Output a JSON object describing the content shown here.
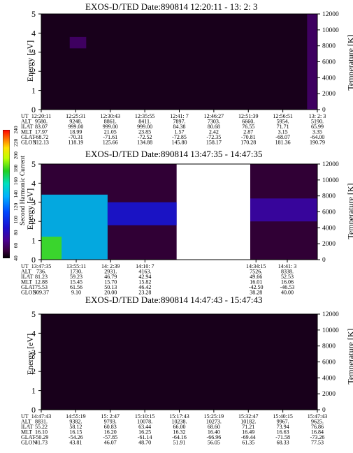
{
  "panels": [
    {
      "title": "EXOS-D/TED   Date:890814  12:20:11 - 13: 2: 3",
      "ylabel_left": "Energy [eV]",
      "ylabel_right": "Temperature [K]",
      "y_ticks": [
        "0",
        "1",
        "2",
        "3",
        "4",
        "5"
      ],
      "t_ticks": [
        "0",
        "2000",
        "4000",
        "6000",
        "8000",
        "10000",
        "12000"
      ],
      "row_labels": [
        "UT",
        "ALT",
        "ILAT",
        "MLT",
        "GLAT",
        "GLON"
      ],
      "columns": [
        [
          "12:20:11",
          "9580.",
          "83.07",
          "17.97",
          "-68.72",
          "112.13"
        ],
        [
          "12:25:31",
          "9248.",
          "999.00",
          "18.99",
          "-70.31",
          "118.19"
        ],
        [
          "12:30:43",
          "8861.",
          "999.00",
          "21.05",
          "-71.61",
          "125.66"
        ],
        [
          "12:35:55",
          "8411.",
          "999.00",
          "23.85",
          "-72.52",
          "134.88"
        ],
        [
          "12:41: 7",
          "7897.",
          "84.38",
          "1.57",
          "-72.85",
          "145.80"
        ],
        [
          "12:46:27",
          "7303.",
          "80.68",
          "2.42",
          "-72.35",
          "158.17"
        ],
        [
          "12:51:39",
          "6660.",
          "76.55",
          "2.87",
          "-70.81",
          "170.28"
        ],
        [
          "12:56:51",
          "5954.",
          "71.71",
          "3.15",
          "-68.07",
          "181.36"
        ],
        [
          "13: 2: 3",
          "5190.",
          "65.99",
          "3.35",
          "-64.00",
          "190.79"
        ]
      ]
    },
    {
      "title": "EXOS-D/TED   Date:890814  13:47:35 - 14:47:35",
      "ylabel_left": "Energy [eV]",
      "ylabel_right": "Temperature [K]",
      "y_ticks": [
        "0",
        "1",
        "2",
        "3",
        "4",
        "5"
      ],
      "t_ticks": [
        "0",
        "2000",
        "4000",
        "6000",
        "8000",
        "10000",
        "12000"
      ],
      "row_labels": [
        "UT",
        "ALT",
        "ILAT",
        "MLT",
        "GLAT",
        "GLON"
      ],
      "columns_left": [
        [
          "13:47:35",
          "736.",
          "81.23",
          "12.88",
          "75.53",
          "309.37"
        ],
        [
          "13:55:11",
          "1730.",
          "59.23",
          "15.45",
          "61.56",
          "9.10"
        ],
        [
          "14: 2:39",
          "2931.",
          "46.79",
          "15.70",
          "50.13",
          "20.00"
        ],
        [
          "14:10: 7",
          "4163.",
          "42.94",
          "15.82",
          "46.42",
          "23.28"
        ]
      ],
      "columns_right": [
        [
          "14:34:15",
          "7526.",
          "49.66",
          "16.01",
          "-42.50",
          "38.28"
        ],
        [
          "14:41: 3",
          "8338.",
          "52.53",
          "16.06",
          "-46.53",
          "40.00"
        ]
      ],
      "colorbar": {
        "label": "Second Harmonic Current",
        "ticks": [
          "40",
          "60",
          "80",
          "100",
          "120",
          "140",
          "160",
          "180",
          "200",
          "220",
          "240"
        ]
      }
    },
    {
      "title": "EXOS-D/TED   Date:890814  14:47:43 - 15:47:43",
      "ylabel_left": "Energy [eV]",
      "ylabel_right": "Temperature [K]",
      "y_ticks": [
        "0",
        "1",
        "2",
        "3",
        "4",
        "5"
      ],
      "t_ticks": [
        "0",
        "2000",
        "4000",
        "6000",
        "8000",
        "10000",
        "12000"
      ],
      "row_labels": [
        "UT",
        "ALT",
        "ILAT",
        "MLT",
        "GLAT",
        "GLON"
      ],
      "columns": [
        [
          "14:47:43",
          "8831.",
          "55.22",
          "16.10",
          "-50.29",
          "41.73"
        ],
        [
          "14:55:19",
          "9382.",
          "58.12",
          "16.15",
          "-54.26",
          "43.81"
        ],
        [
          "15: 2:47",
          "9793.",
          "60.83",
          "16.20",
          "-57.85",
          "46.07"
        ],
        [
          "15:10:15",
          "10078.",
          "63.44",
          "16.25",
          "-61.14",
          "48.70"
        ],
        [
          "15:17:43",
          "10238.",
          "66.00",
          "16.32",
          "-64.16",
          "51.91"
        ],
        [
          "15:25:19",
          "10273.",
          "68.60",
          "16.40",
          "-66.96",
          "56.05"
        ],
        [
          "15:32:47",
          "10182.",
          "71.21",
          "16.49",
          "-69.44",
          "61.35"
        ],
        [
          "15:40:15",
          "9967.",
          "73.94",
          "16.63",
          "-71.58",
          "68.33"
        ],
        [
          "15:47:43",
          "9625.",
          "76.86",
          "16.84",
          "-73.26",
          "77.53"
        ]
      ]
    }
  ],
  "chart_data": [
    {
      "type": "heatmap",
      "title": "EXOS-D/TED   Date:890814  12:20:11 - 13: 2: 3",
      "ylabel": "Energy [eV]",
      "ylabel_right": "Temperature [K]",
      "ylim": [
        0,
        5
      ],
      "ylim_right": [
        0,
        12000
      ],
      "x_time_range": [
        "12:20:11",
        "13: 2: 3"
      ],
      "background_level": 45,
      "features": [
        {
          "x_range": [
            "12:24:30",
            "12:27:00"
          ],
          "energy_range": [
            3.2,
            3.8
          ],
          "level": 60
        },
        {
          "x_range": [
            "13: 0:30",
            "13: 2: 0"
          ],
          "energy_range": [
            0,
            5
          ],
          "level": 60
        }
      ]
    },
    {
      "type": "heatmap",
      "title": "EXOS-D/TED   Date:890814  13:47:35 - 14:47:35",
      "ylabel": "Energy [eV]",
      "ylabel_right": "Temperature [K]",
      "ylim": [
        0,
        5
      ],
      "ylim_right": [
        0,
        12000
      ],
      "x_time_range": [
        "13:47:35",
        "14:47:35"
      ],
      "data_gap": [
        "14:17:00",
        "14:33:00"
      ],
      "colorbar_label": "Second Harmonic Current",
      "colorbar_range": [
        40,
        240
      ],
      "background_level": 50,
      "features": [
        {
          "x_range": [
            "13:47:35",
            "14:02:00"
          ],
          "energy_range": [
            0,
            3.4
          ],
          "level": 140
        },
        {
          "x_range": [
            "13:47:35",
            "13:52:00"
          ],
          "energy_range": [
            0,
            1.2
          ],
          "level": 180
        },
        {
          "x_range": [
            "14:02:00",
            "14:17:00"
          ],
          "energy_range": [
            1.8,
            3.0
          ],
          "level": 90
        },
        {
          "x_range": [
            "14:33:00",
            "14:47:35"
          ],
          "energy_range": [
            2.0,
            3.2
          ],
          "level": 75
        }
      ]
    },
    {
      "type": "heatmap",
      "title": "EXOS-D/TED   Date:890814  14:47:43 - 15:47:43",
      "ylabel": "Energy [eV]",
      "ylabel_right": "Temperature [K]",
      "ylim": [
        0,
        5
      ],
      "ylim_right": [
        0,
        12000
      ],
      "x_time_range": [
        "14:47:43",
        "15:47:43"
      ],
      "background_level": 45,
      "features": []
    }
  ]
}
